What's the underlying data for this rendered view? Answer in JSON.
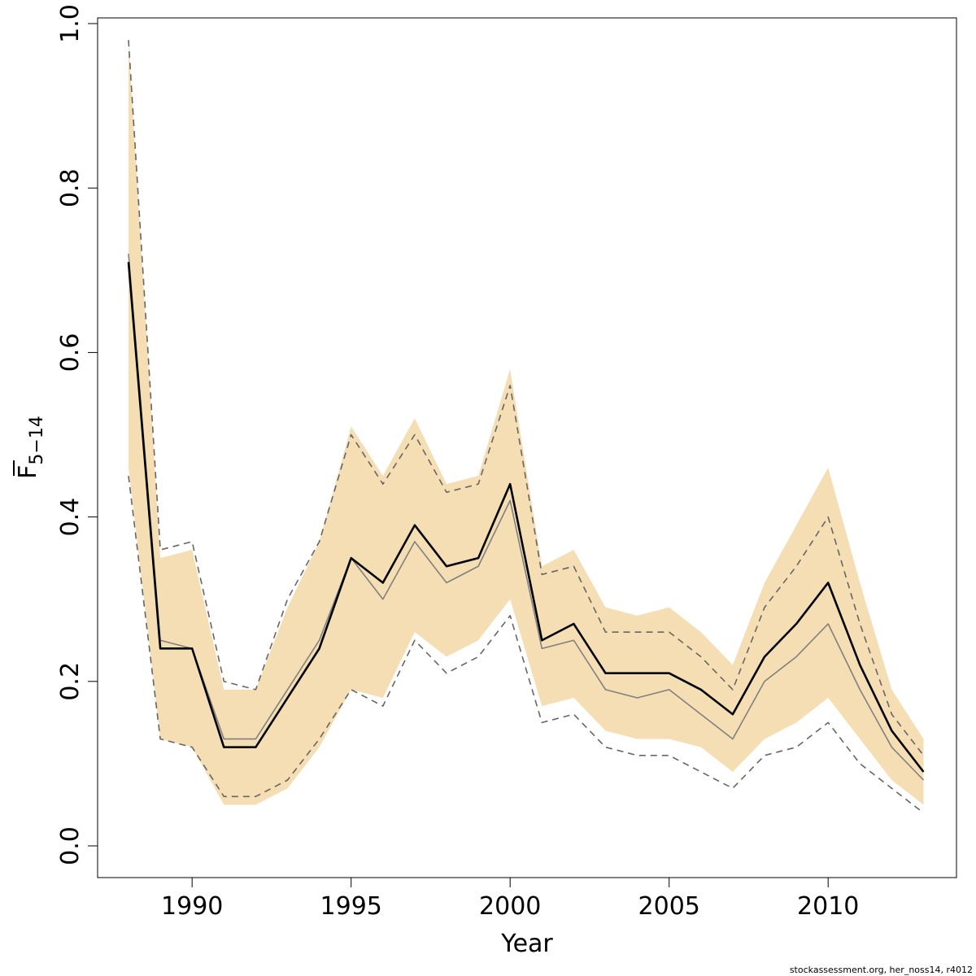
{
  "chart_data": {
    "type": "line",
    "title": "",
    "xlabel": "Year",
    "ylabel": {
      "main": "F",
      "sub": "5−14"
    },
    "xlim": [
      1987,
      2014
    ],
    "ylim": [
      0,
      1.0
    ],
    "x_ticks": [
      1990,
      1995,
      2000,
      2005,
      2010
    ],
    "x_tick_labels": [
      "1990",
      "1995",
      "2000",
      "2005",
      "2010"
    ],
    "y_ticks": [
      0.0,
      0.2,
      0.4,
      0.6,
      0.8,
      1.0
    ],
    "y_tick_labels": [
      "0.0",
      "0.2",
      "0.4",
      "0.6",
      "0.8",
      "1.0"
    ],
    "grid": false,
    "x": [
      1988,
      1989,
      1990,
      1991,
      1992,
      1993,
      1994,
      1995,
      1996,
      1997,
      1998,
      1999,
      2000,
      2001,
      2002,
      2003,
      2004,
      2005,
      2006,
      2007,
      2008,
      2009,
      2010,
      2011,
      2012,
      2013
    ],
    "band": {
      "color": "#f5deb3",
      "upper": [
        0.98,
        0.35,
        0.36,
        0.19,
        0.19,
        0.29,
        0.37,
        0.51,
        0.45,
        0.52,
        0.44,
        0.45,
        0.58,
        0.34,
        0.36,
        0.29,
        0.28,
        0.29,
        0.26,
        0.22,
        0.32,
        0.39,
        0.46,
        0.32,
        0.19,
        0.13
      ],
      "lower": [
        0.46,
        0.13,
        0.12,
        0.05,
        0.05,
        0.07,
        0.12,
        0.19,
        0.18,
        0.26,
        0.23,
        0.25,
        0.3,
        0.17,
        0.18,
        0.14,
        0.13,
        0.13,
        0.12,
        0.09,
        0.13,
        0.15,
        0.18,
        0.13,
        0.08,
        0.05
      ]
    },
    "series": [
      {
        "style": "solid-black",
        "color": "#000000",
        "values": [
          0.71,
          0.24,
          0.24,
          0.12,
          0.12,
          0.18,
          0.24,
          0.35,
          0.32,
          0.39,
          0.34,
          0.35,
          0.44,
          0.25,
          0.27,
          0.21,
          0.21,
          0.21,
          0.19,
          0.16,
          0.23,
          0.27,
          0.32,
          0.22,
          0.14,
          0.09
        ]
      },
      {
        "style": "solid-grey",
        "color": "#808080",
        "values": [
          0.72,
          0.25,
          0.24,
          0.13,
          0.13,
          0.19,
          0.25,
          0.35,
          0.3,
          0.37,
          0.32,
          0.34,
          0.42,
          0.24,
          0.25,
          0.19,
          0.18,
          0.19,
          0.16,
          0.13,
          0.2,
          0.23,
          0.27,
          0.19,
          0.12,
          0.08
        ]
      },
      {
        "style": "dashed-upper",
        "color": "#666666",
        "values": [
          0.98,
          0.36,
          0.37,
          0.2,
          0.19,
          0.3,
          0.37,
          0.5,
          0.44,
          0.5,
          0.43,
          0.44,
          0.56,
          0.33,
          0.34,
          0.26,
          0.26,
          0.26,
          0.23,
          0.19,
          0.29,
          0.34,
          0.4,
          0.27,
          0.16,
          0.11
        ]
      },
      {
        "style": "dashed-lower",
        "color": "#666666",
        "values": [
          0.45,
          0.13,
          0.12,
          0.06,
          0.06,
          0.08,
          0.13,
          0.19,
          0.17,
          0.25,
          0.21,
          0.23,
          0.28,
          0.15,
          0.16,
          0.12,
          0.11,
          0.11,
          0.09,
          0.07,
          0.11,
          0.12,
          0.15,
          0.1,
          0.07,
          0.04
        ]
      }
    ]
  },
  "footer": "stockassessment.org, her_noss14, r4012"
}
